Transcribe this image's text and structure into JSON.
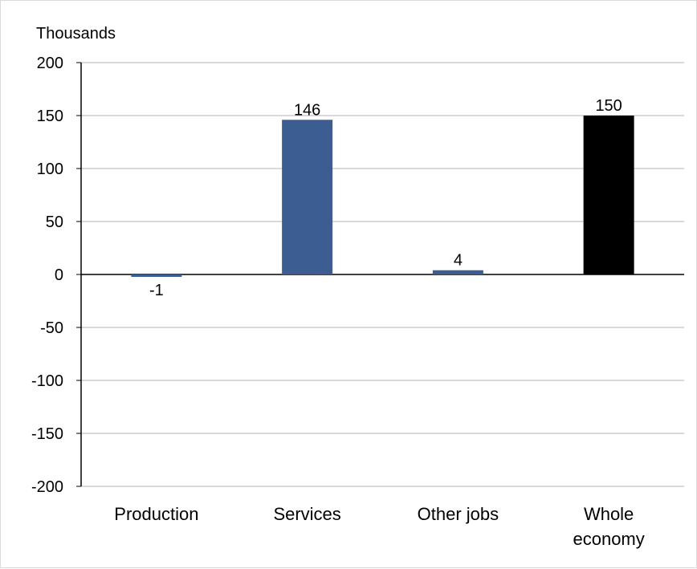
{
  "chart_data": {
    "type": "bar",
    "unit_label": "Thousands",
    "categories": [
      "Production",
      "Services",
      "Other jobs",
      "Whole economy"
    ],
    "category_label_lines": [
      [
        "Production"
      ],
      [
        "Services"
      ],
      [
        "Other jobs"
      ],
      [
        "Whole",
        "economy"
      ]
    ],
    "values": [
      -1,
      146,
      4,
      150
    ],
    "data_labels": [
      "-1",
      "146",
      "4",
      "150"
    ],
    "bar_colors": [
      "#3b5d91",
      "#3b5d91",
      "#3b5d91",
      "#000000"
    ],
    "ylim": [
      -200,
      200
    ],
    "yticks": [
      200,
      150,
      100,
      50,
      0,
      -50,
      -100,
      -150,
      -200
    ],
    "ytick_labels": [
      "200",
      "150",
      "100",
      "50",
      "0",
      "-50",
      "-100",
      "-150",
      "-200"
    ],
    "grid": true,
    "title": "",
    "xlabel": ""
  }
}
